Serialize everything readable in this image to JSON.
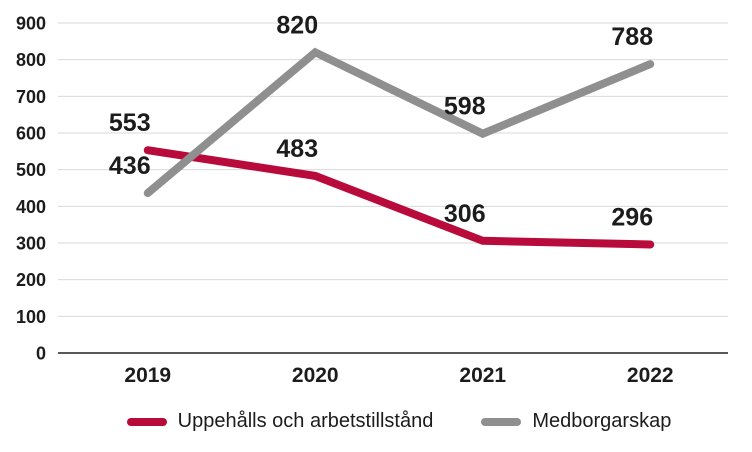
{
  "chart_data": {
    "type": "line",
    "title": "",
    "xlabel": "",
    "ylabel": "",
    "categories": [
      "2019",
      "2020",
      "2021",
      "2022"
    ],
    "series": [
      {
        "name": "Uppehålls och arbetstillstånd",
        "values": [
          553,
          483,
          306,
          296
        ],
        "color": "#B90B3B"
      },
      {
        "name": "Medborgarskap",
        "values": [
          436,
          820,
          598,
          788
        ],
        "color": "#8F8F8F"
      }
    ],
    "y_ticks": [
      0,
      100,
      200,
      300,
      400,
      500,
      600,
      700,
      800,
      900
    ],
    "ylim": [
      0,
      900
    ],
    "grid": "horizontal",
    "legend_position": "bottom",
    "data_labels_shown": true
  },
  "colors": {
    "series_red": "#B90B3B",
    "series_gray": "#8F8F8F",
    "gridline": "#D9D9D9",
    "axis_line": "#595959",
    "text": "#1C1C1C",
    "background": "#FFFFFF"
  }
}
